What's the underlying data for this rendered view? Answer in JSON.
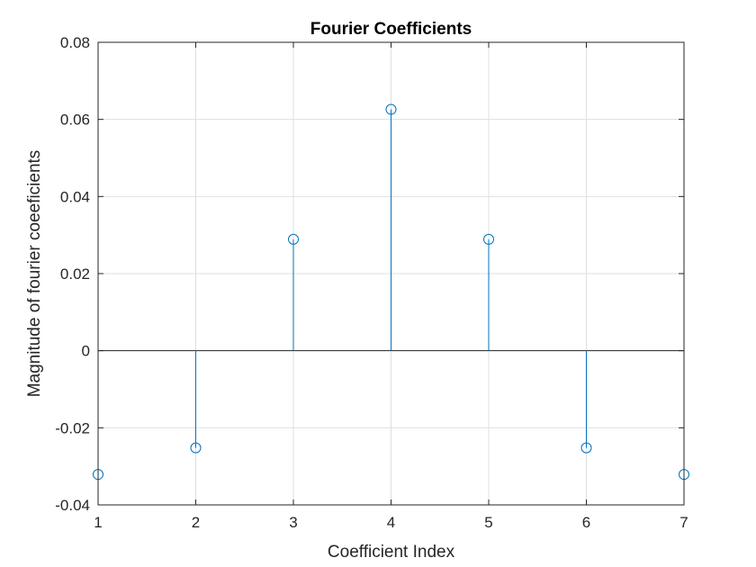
{
  "chart_data": {
    "type": "stem",
    "title": "Fourier Coefficients",
    "xlabel": "Coefficient Index",
    "ylabel": "Magnitude of fourier coeeficients",
    "x": [
      1,
      2,
      3,
      4,
      5,
      6,
      7
    ],
    "values": [
      -0.0321,
      -0.0252,
      0.0289,
      0.0626,
      0.0289,
      -0.0252,
      -0.0321
    ],
    "xlim": [
      1,
      7
    ],
    "ylim": [
      -0.04,
      0.08
    ],
    "xticks": [
      "1",
      "2",
      "3",
      "4",
      "5",
      "6",
      "7"
    ],
    "yticks": [
      "-0.04",
      "-0.02",
      "0",
      "0.02",
      "0.04",
      "0.06",
      "0.08"
    ],
    "grid": true,
    "baseline": 0,
    "marker": "circle",
    "series_color": "#0072BD"
  }
}
